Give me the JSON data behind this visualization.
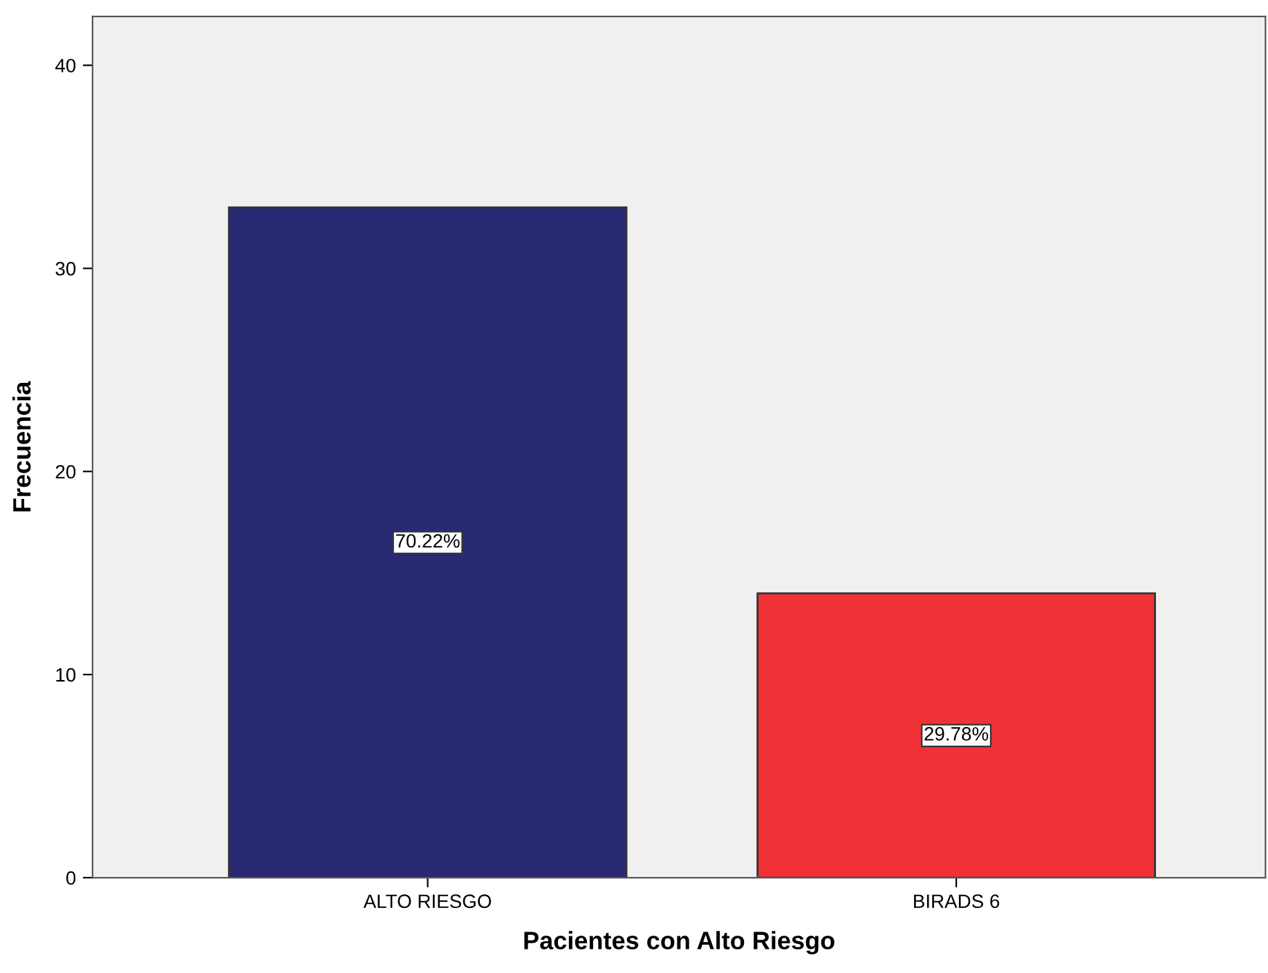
{
  "chart_data": {
    "type": "bar",
    "xlabel": "Pacientes con Alto Riesgo",
    "ylabel": "Frecuencia",
    "categories": [
      "ALTO RIESGO",
      "BIRADS 6"
    ],
    "values": [
      33,
      14
    ],
    "colors": [
      "#292a73",
      "#f03237"
    ],
    "annotations": [
      "70.22%",
      "29.78%"
    ],
    "ylim": [
      0,
      42.4
    ],
    "yticks": [
      0,
      10,
      20,
      30,
      40
    ],
    "grid": false,
    "legend": false
  }
}
